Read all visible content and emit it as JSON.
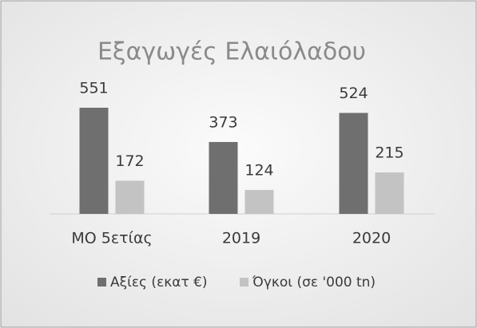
{
  "chart_data": {
    "type": "bar",
    "title": "Εξαγωγές Ελαιόλαδου",
    "categories": [
      "ΜΟ 5ετίας",
      "2019",
      "2020"
    ],
    "series": [
      {
        "name": "Αξίες (εκατ €)",
        "color": "#6f6f6f",
        "values": [
          551,
          373,
          524
        ]
      },
      {
        "name": "Όγκοι (σε '000 tn)",
        "color": "#c3c3c3",
        "values": [
          172,
          124,
          215
        ]
      }
    ],
    "legend": "bottom"
  }
}
